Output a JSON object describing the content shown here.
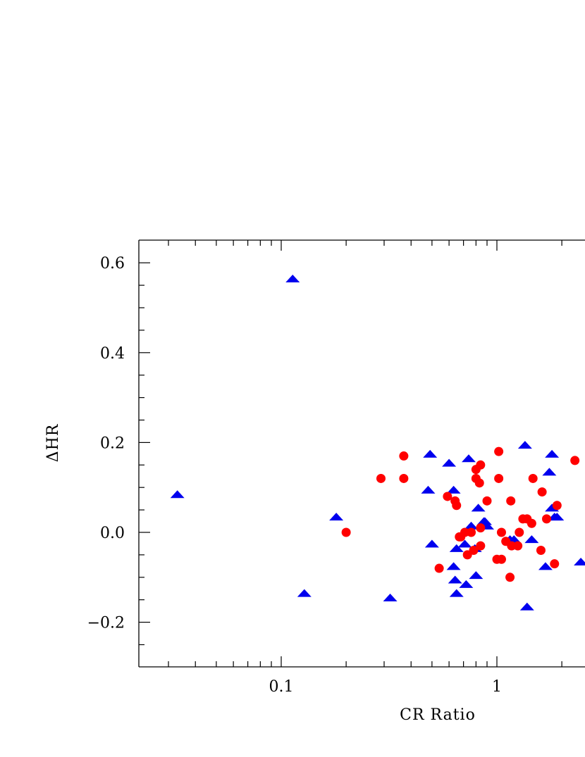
{
  "chart_data": {
    "type": "scatter",
    "title": "",
    "xlabel": "CR Ratio",
    "ylabel": "ΔHR",
    "xscale": "log",
    "xlim": [
      0.024,
      2.5
    ],
    "ylim": [
      -0.3,
      0.65
    ],
    "x_ticks": [
      {
        "value": 0.1,
        "label": "0.1"
      },
      {
        "value": 1,
        "label": "1"
      }
    ],
    "y_ticks": [
      {
        "value": -0.2,
        "label": "−0.2"
      },
      {
        "value": 0.0,
        "label": "0.0"
      },
      {
        "value": 0.2,
        "label": "0.2"
      },
      {
        "value": 0.4,
        "label": "0.4"
      },
      {
        "value": 0.6,
        "label": "0.6"
      }
    ],
    "grid": false,
    "series": [
      {
        "marker": "triangle",
        "color": "#0000ee",
        "points": [
          [
            0.033,
            0.085
          ],
          [
            0.113,
            0.565
          ],
          [
            0.128,
            -0.135
          ],
          [
            0.18,
            0.035
          ],
          [
            0.32,
            -0.145
          ],
          [
            0.48,
            0.095
          ],
          [
            0.49,
            0.175
          ],
          [
            0.5,
            -0.025
          ],
          [
            0.6,
            0.155
          ],
          [
            0.63,
            0.095
          ],
          [
            0.63,
            -0.075
          ],
          [
            0.64,
            -0.105
          ],
          [
            0.65,
            -0.035
          ],
          [
            0.65,
            -0.135
          ],
          [
            0.71,
            -0.025
          ],
          [
            0.72,
            -0.115
          ],
          [
            0.74,
            0.165
          ],
          [
            0.76,
            0.015
          ],
          [
            0.79,
            -0.035
          ],
          [
            0.8,
            -0.095
          ],
          [
            0.82,
            0.055
          ],
          [
            0.87,
            0.025
          ],
          [
            0.88,
            0.025
          ],
          [
            0.9,
            0.015
          ],
          [
            1.15,
            -0.015
          ],
          [
            1.2,
            -0.015
          ],
          [
            1.35,
            0.195
          ],
          [
            1.38,
            -0.165
          ],
          [
            1.45,
            -0.015
          ],
          [
            1.68,
            -0.075
          ],
          [
            1.75,
            0.135
          ],
          [
            1.8,
            0.175
          ],
          [
            1.8,
            0.055
          ],
          [
            1.85,
            0.035
          ],
          [
            1.9,
            0.035
          ],
          [
            2.45,
            -0.065
          ]
        ]
      },
      {
        "marker": "circle",
        "color": "#ff0000",
        "points": [
          [
            0.2,
            0.0
          ],
          [
            0.29,
            0.12
          ],
          [
            0.37,
            0.17
          ],
          [
            0.37,
            0.12
          ],
          [
            0.54,
            -0.08
          ],
          [
            0.59,
            0.08
          ],
          [
            0.64,
            0.07
          ],
          [
            0.65,
            0.06
          ],
          [
            0.67,
            -0.01
          ],
          [
            0.68,
            -0.01
          ],
          [
            0.71,
            0.0
          ],
          [
            0.73,
            -0.05
          ],
          [
            0.76,
            0.0
          ],
          [
            0.78,
            -0.04
          ],
          [
            0.8,
            0.14
          ],
          [
            0.8,
            0.12
          ],
          [
            0.83,
            0.11
          ],
          [
            0.84,
            0.15
          ],
          [
            0.84,
            -0.03
          ],
          [
            0.84,
            0.01
          ],
          [
            0.9,
            0.07
          ],
          [
            1.0,
            -0.06
          ],
          [
            1.02,
            0.18
          ],
          [
            1.02,
            0.12
          ],
          [
            1.05,
            0.0
          ],
          [
            1.05,
            -0.06
          ],
          [
            1.1,
            -0.02
          ],
          [
            1.15,
            -0.1
          ],
          [
            1.16,
            0.07
          ],
          [
            1.17,
            -0.03
          ],
          [
            1.25,
            -0.03
          ],
          [
            1.27,
            0.0
          ],
          [
            1.32,
            0.03
          ],
          [
            1.38,
            0.03
          ],
          [
            1.45,
            0.02
          ],
          [
            1.47,
            0.12
          ],
          [
            1.6,
            -0.04
          ],
          [
            1.62,
            0.09
          ],
          [
            1.7,
            0.03
          ],
          [
            1.85,
            -0.07
          ],
          [
            1.9,
            0.06
          ],
          [
            2.3,
            0.16
          ]
        ]
      }
    ]
  }
}
